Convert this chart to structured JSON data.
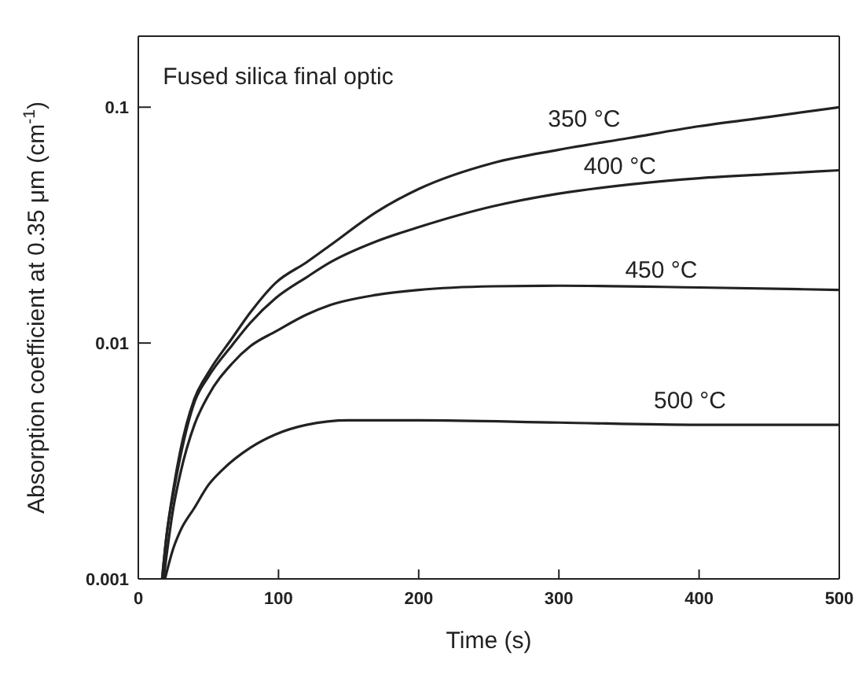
{
  "chart_data": {
    "type": "line",
    "xlabel": "Time (s)",
    "ylabel": "Absorption coefficient at 0.35 μm (cm$^{-1}$)",
    "xlim": [
      0,
      500
    ],
    "xticks": [
      0,
      100,
      200,
      300,
      400,
      500
    ],
    "ylim": [
      0.001,
      0.2
    ],
    "yticks": [
      0.001,
      0.01,
      0.1
    ],
    "log": "y",
    "marker": "none",
    "line_style": "solid",
    "annotations": [
      "Fused silica final optic",
      "350 °C",
      "400 °C",
      "450 °C",
      "500 °C"
    ],
    "series": [
      {
        "color": "#222222",
        "x": [
          17,
          20,
          25,
          30,
          40,
          50,
          67,
          80,
          98,
          120,
          137,
          170,
          200,
          253,
          300,
          350,
          400,
          450,
          500
        ],
        "values": [
          0.001,
          0.0015,
          0.0024,
          0.0035,
          0.0058,
          0.0075,
          0.0105,
          0.0135,
          0.018,
          0.022,
          0.026,
          0.036,
          0.045,
          0.058,
          0.066,
          0.074,
          0.083,
          0.091,
          0.1
        ]
      },
      {
        "color": "#222222",
        "x": [
          17,
          20,
          25,
          30,
          40,
          50,
          67,
          80,
          98,
          120,
          137,
          170,
          200,
          253,
          300,
          350,
          400,
          450,
          500
        ],
        "values": [
          0.001,
          0.0015,
          0.0023,
          0.0033,
          0.0056,
          0.0072,
          0.0098,
          0.0122,
          0.0155,
          0.019,
          0.022,
          0.027,
          0.031,
          0.038,
          0.043,
          0.047,
          0.05,
          0.052,
          0.054
        ]
      },
      {
        "color": "#222222",
        "x": [
          18,
          25,
          30,
          40,
          50,
          67,
          80,
          98,
          120,
          137,
          170,
          200,
          253,
          300,
          400,
          500
        ],
        "values": [
          0.001,
          0.002,
          0.0028,
          0.0045,
          0.006,
          0.0082,
          0.0097,
          0.0112,
          0.0132,
          0.0145,
          0.016,
          0.0168,
          0.0174,
          0.0175,
          0.0172,
          0.0168
        ]
      },
      {
        "color": "#222222",
        "x": [
          19,
          25,
          30,
          40,
          50,
          60,
          80,
          98,
          120,
          150,
          200,
          300,
          400,
          500
        ],
        "values": [
          0.001,
          0.00135,
          0.0016,
          0.002,
          0.0025,
          0.0029,
          0.0036,
          0.0041,
          0.0045,
          0.0047,
          0.0047,
          0.0046,
          0.0045,
          0.0045
        ]
      }
    ]
  }
}
